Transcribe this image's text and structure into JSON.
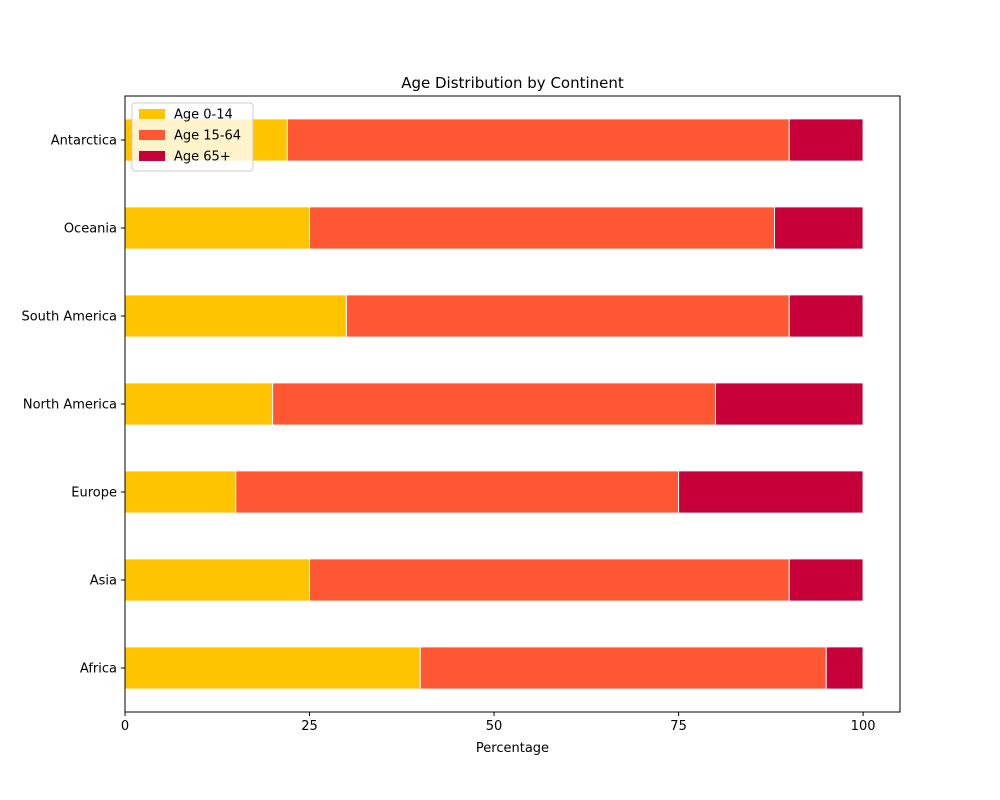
{
  "chart_data": {
    "type": "bar",
    "orientation": "horizontal",
    "stacked": true,
    "title": "Age Distribution by Continent",
    "xlabel": "Percentage",
    "ylabel": "",
    "xlim": [
      0,
      105
    ],
    "xticks": [
      0,
      25,
      50,
      75,
      100
    ],
    "categories": [
      "Africa",
      "Asia",
      "Europe",
      "North America",
      "South America",
      "Oceania",
      "Antarctica"
    ],
    "series": [
      {
        "name": "Age 0-14",
        "color": "#FFC300",
        "values": [
          40,
          25,
          15,
          20,
          30,
          25,
          22
        ]
      },
      {
        "name": "Age 15-64",
        "color": "#FF5733",
        "values": [
          55,
          65,
          60,
          60,
          60,
          63,
          68
        ]
      },
      {
        "name": "Age 65+",
        "color": "#C70039",
        "values": [
          5,
          10,
          25,
          20,
          10,
          12,
          10
        ]
      }
    ],
    "grid": false,
    "legend_position": "top-left"
  }
}
